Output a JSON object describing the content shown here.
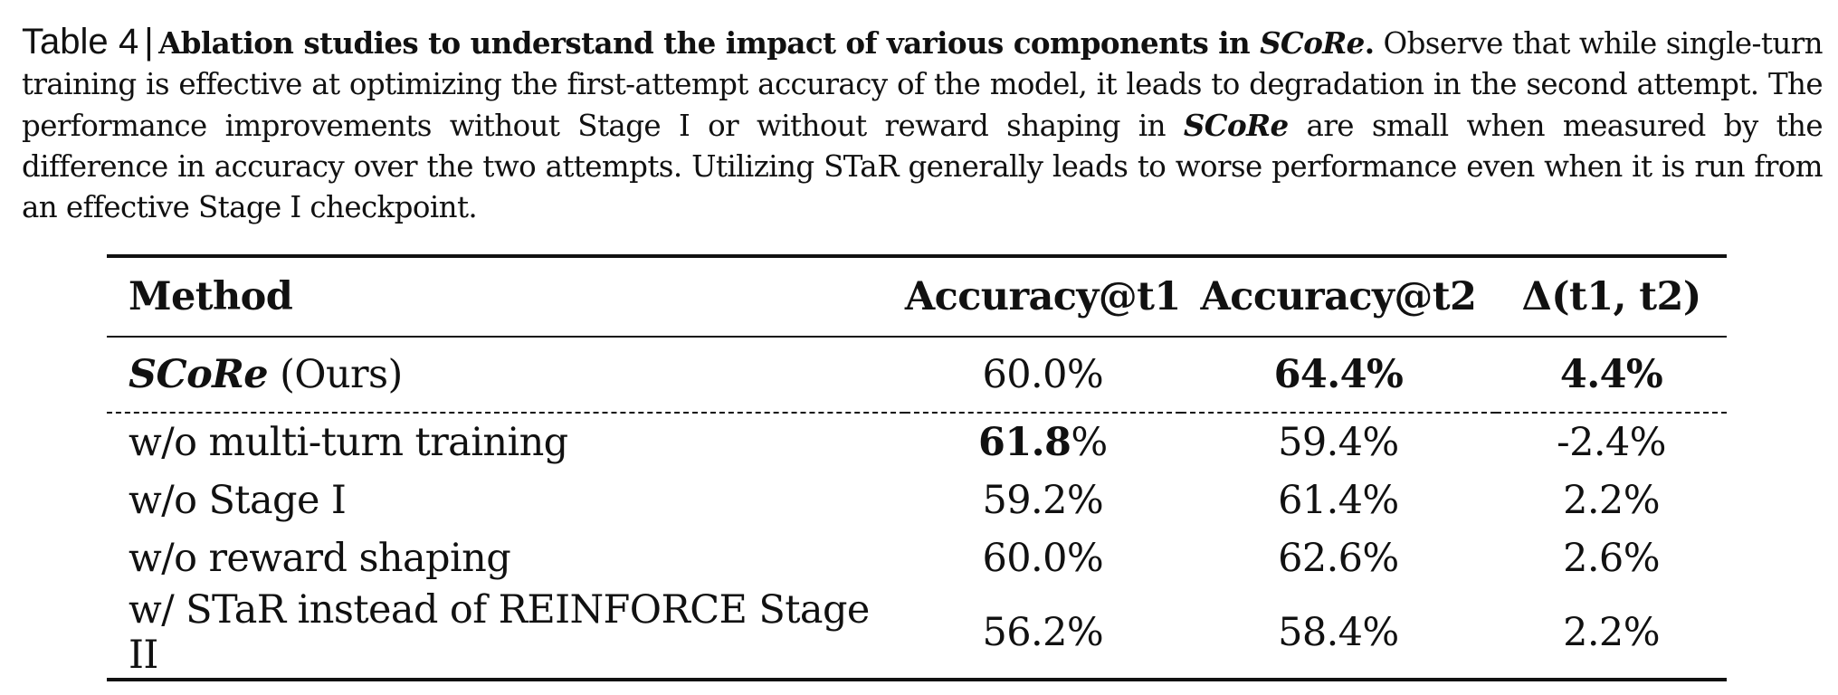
{
  "caption": {
    "label": "Table 4",
    "separator": "|",
    "title_prefix": "Ablation studies to understand the impact of various components in ",
    "title_method": "SCoRe",
    "title_suffix": ".",
    "text_1": " Observe that while single-turn training is effective at optimizing the first-attempt accuracy of the model, it leads to degradation in the second attempt. The performance improvements without Stage I or without reward shaping in ",
    "text_method": "SCoRe",
    "text_2": " are small when measured by the difference in accuracy over the two attempts. Utilizing STaR generally leads to worse performance even when it is run from an effective Stage I checkpoint."
  },
  "table": {
    "headers": {
      "method": "Method",
      "acc_t1": "Accuracy@t1",
      "acc_t2": "Accuracy@t2",
      "delta": "Δ(t1, t2)"
    },
    "rows": [
      {
        "method_name": "SCoRe",
        "method_suffix": " (Ours)",
        "acc_t1": "60.0%",
        "acc_t2": "64.4%",
        "delta": "4.4%"
      },
      {
        "method": "w/o multi-turn training",
        "acc_t1_bold": "61.8",
        "acc_t1_rest": "%",
        "acc_t2": "59.4%",
        "delta": "-2.4%"
      },
      {
        "method": "w/o Stage I",
        "acc_t1": "59.2%",
        "acc_t2": "61.4%",
        "delta": "2.2%"
      },
      {
        "method": "w/o reward shaping",
        "acc_t1": "60.0%",
        "acc_t2": "62.6%",
        "delta": "2.6%"
      },
      {
        "method": "w/ STaR instead of REINFORCE Stage II",
        "acc_t1": "56.2%",
        "acc_t2": "58.4%",
        "delta": "2.2%"
      }
    ]
  }
}
